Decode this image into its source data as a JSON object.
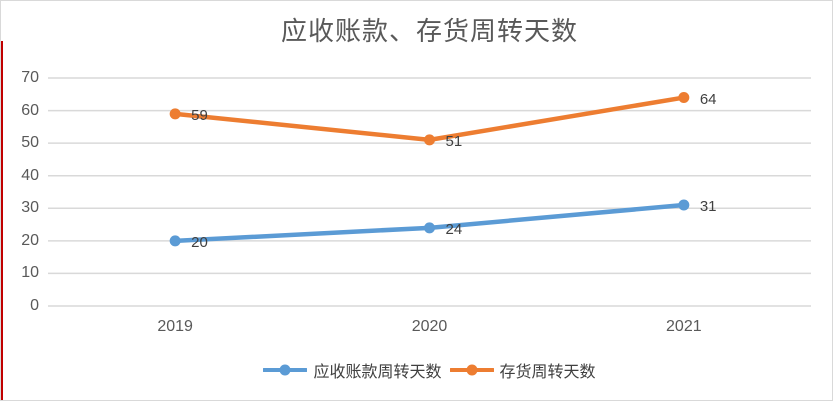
{
  "chart_data": {
    "type": "line",
    "title": "应收账款、存货周转天数",
    "categories": [
      "2019",
      "2020",
      "2021"
    ],
    "series": [
      {
        "name": "应收账款周转天数",
        "values": [
          20,
          24,
          31
        ],
        "color": "#5B9BD5"
      },
      {
        "name": "存货周转天数",
        "values": [
          59,
          51,
          64
        ],
        "color": "#ED7D31"
      }
    ],
    "ylim": [
      0,
      70
    ],
    "yticks": [
      0,
      10,
      20,
      30,
      40,
      50,
      60,
      70
    ],
    "xlabel": "",
    "ylabel": "",
    "grid": true,
    "data_labels": true,
    "legend_position": "bottom"
  },
  "colors": {
    "gridline": "#D9D9D9",
    "axis_text": "#595959",
    "title_text": "#595959",
    "data_label_text": "#404040",
    "legend_text": "#404040",
    "border": "#D9D9D9",
    "left_edge_accent": "#C00000",
    "background": "#FFFFFF"
  }
}
